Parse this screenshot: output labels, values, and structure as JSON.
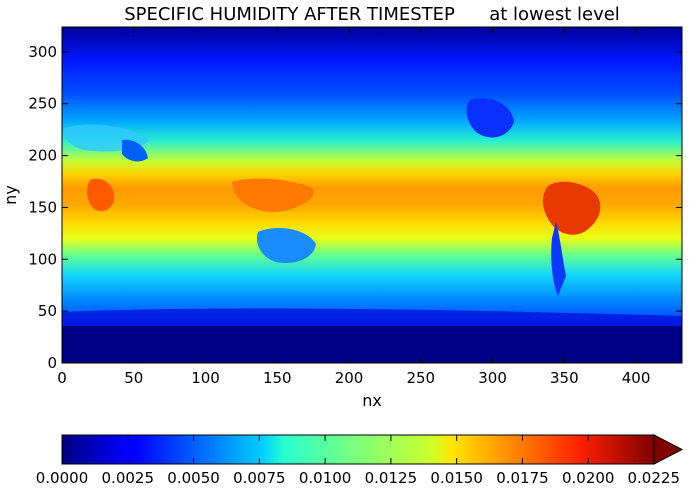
{
  "chart_data": {
    "type": "heatmap",
    "title": "SPECIFIC HUMIDITY AFTER TIMESTEP      at lowest level",
    "xlabel": "nx",
    "ylabel": "ny",
    "xlim": [
      0,
      432
    ],
    "ylim": [
      0,
      324
    ],
    "x_ticks": [
      "0",
      "50",
      "100",
      "150",
      "200",
      "250",
      "300",
      "350",
      "400"
    ],
    "y_ticks": [
      "0",
      "50",
      "100",
      "150",
      "200",
      "250",
      "300"
    ],
    "colormap": "jet",
    "colorbar": {
      "orientation": "horizontal",
      "extend": "max",
      "range": [
        0.0,
        0.0225
      ],
      "tick_labels": [
        "0.0000",
        "0.0025",
        "0.0050",
        "0.0075",
        "0.0100",
        "0.0125",
        "0.0150",
        "0.0175",
        "0.0200",
        "0.0225"
      ]
    },
    "field_summary": {
      "tropics_ny_150_to_200": 0.016,
      "midlatitudes_ny_100_and_250": 0.007,
      "polar_ny_0_to_40": 0.0005,
      "polar_ny_290_to_324": 0.002,
      "max_over_south_america": 0.021
    }
  }
}
